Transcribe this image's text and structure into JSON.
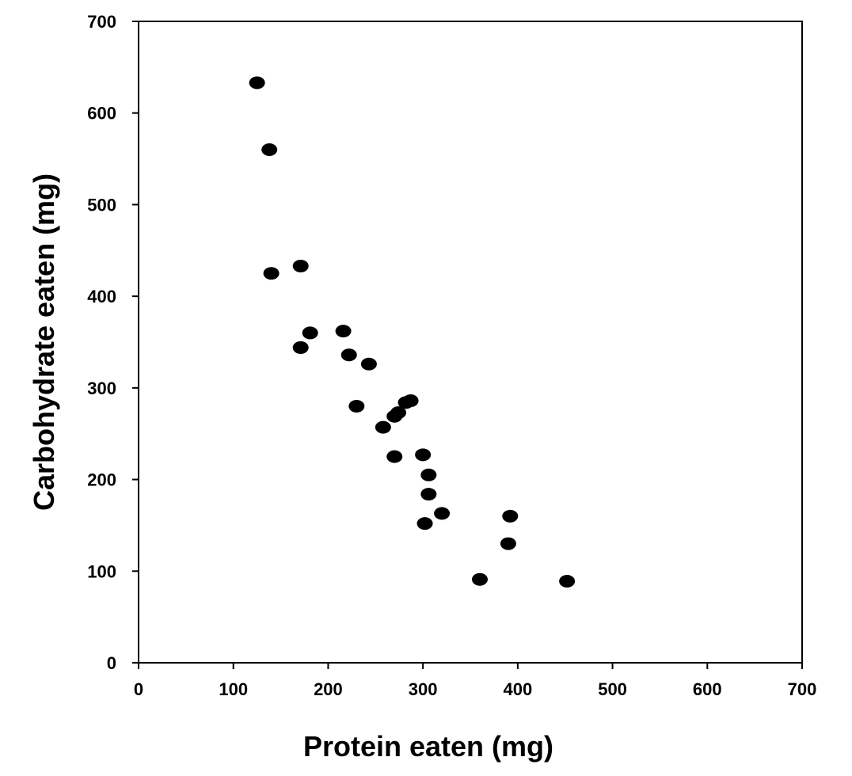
{
  "chart_data": {
    "type": "scatter",
    "title": "",
    "xlabel": "Protein eaten (mg)",
    "ylabel": "Carbohydrate eaten (mg)",
    "xlim": [
      0,
      700
    ],
    "ylim": [
      0,
      700
    ],
    "xticks": [
      0,
      100,
      200,
      300,
      400,
      500,
      600,
      700
    ],
    "yticks": [
      0,
      100,
      200,
      300,
      400,
      500,
      600,
      700
    ],
    "grid": false,
    "legend": "none",
    "marker_color": "#000000",
    "series": [
      {
        "points": [
          {
            "x": 125,
            "y": 633
          },
          {
            "x": 138,
            "y": 560
          },
          {
            "x": 140,
            "y": 425
          },
          {
            "x": 171,
            "y": 433
          },
          {
            "x": 171,
            "y": 344
          },
          {
            "x": 181,
            "y": 360
          },
          {
            "x": 216,
            "y": 362
          },
          {
            "x": 222,
            "y": 336
          },
          {
            "x": 243,
            "y": 326
          },
          {
            "x": 230,
            "y": 280
          },
          {
            "x": 258,
            "y": 257
          },
          {
            "x": 270,
            "y": 269
          },
          {
            "x": 274,
            "y": 273
          },
          {
            "x": 282,
            "y": 284
          },
          {
            "x": 287,
            "y": 286
          },
          {
            "x": 270,
            "y": 225
          },
          {
            "x": 300,
            "y": 227
          },
          {
            "x": 306,
            "y": 205
          },
          {
            "x": 306,
            "y": 184
          },
          {
            "x": 320,
            "y": 163
          },
          {
            "x": 302,
            "y": 152
          },
          {
            "x": 392,
            "y": 160
          },
          {
            "x": 390,
            "y": 130
          },
          {
            "x": 360,
            "y": 91
          },
          {
            "x": 452,
            "y": 89
          }
        ]
      }
    ]
  }
}
